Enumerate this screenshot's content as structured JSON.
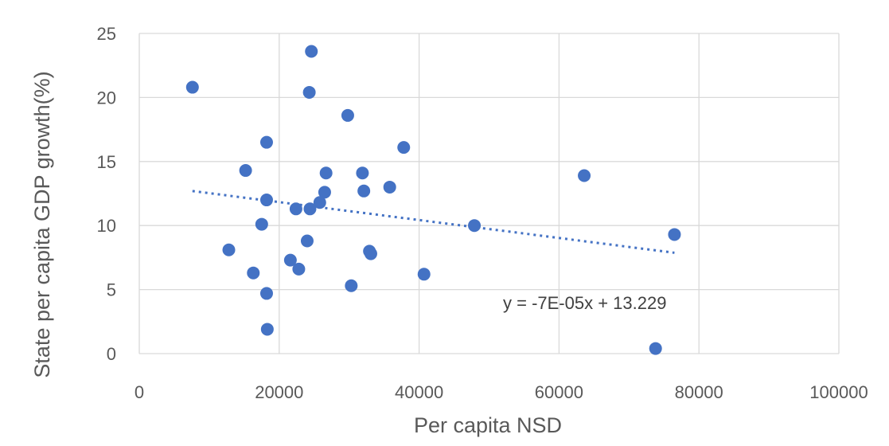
{
  "chart_data": {
    "type": "scatter",
    "xlabel": "Per capita NSD",
    "ylabel": "State per capita GDP growth(%)",
    "xlim": [
      0,
      100000
    ],
    "ylim": [
      0,
      25
    ],
    "xticks": [
      0,
      20000,
      40000,
      60000,
      80000,
      100000
    ],
    "yticks": [
      0,
      5,
      10,
      15,
      20,
      25
    ],
    "xtick_labels": [
      "0",
      "20000",
      "40000",
      "60000",
      "80000",
      "100000"
    ],
    "ytick_labels": [
      "0",
      "5",
      "10",
      "15",
      "20",
      "25"
    ],
    "grid": true,
    "legend": "none",
    "marker_color": "#4472c4",
    "points": [
      {
        "x": 7600,
        "y": 20.8
      },
      {
        "x": 12800,
        "y": 8.1
      },
      {
        "x": 15200,
        "y": 14.3
      },
      {
        "x": 16300,
        "y": 6.3
      },
      {
        "x": 17500,
        "y": 10.1
      },
      {
        "x": 18200,
        "y": 16.5
      },
      {
        "x": 18200,
        "y": 12.0
      },
      {
        "x": 18200,
        "y": 4.7
      },
      {
        "x": 18300,
        "y": 1.9
      },
      {
        "x": 21600,
        "y": 7.3
      },
      {
        "x": 22400,
        "y": 11.3
      },
      {
        "x": 22800,
        "y": 6.6
      },
      {
        "x": 24000,
        "y": 8.8
      },
      {
        "x": 24300,
        "y": 20.4
      },
      {
        "x": 24400,
        "y": 11.3
      },
      {
        "x": 24600,
        "y": 23.6
      },
      {
        "x": 25800,
        "y": 11.8
      },
      {
        "x": 26500,
        "y": 12.6
      },
      {
        "x": 26700,
        "y": 14.1
      },
      {
        "x": 29800,
        "y": 18.6
      },
      {
        "x": 30300,
        "y": 5.3
      },
      {
        "x": 31900,
        "y": 14.1
      },
      {
        "x": 32100,
        "y": 12.7
      },
      {
        "x": 32900,
        "y": 8.0
      },
      {
        "x": 33100,
        "y": 7.8
      },
      {
        "x": 35800,
        "y": 13.0
      },
      {
        "x": 37800,
        "y": 16.1
      },
      {
        "x": 40700,
        "y": 6.2
      },
      {
        "x": 47900,
        "y": 10.0
      },
      {
        "x": 63600,
        "y": 13.9
      },
      {
        "x": 73800,
        "y": 0.4
      },
      {
        "x": 76500,
        "y": 9.3
      }
    ],
    "trendline": {
      "type": "linear",
      "slope": -7e-05,
      "intercept": 13.229,
      "x_range": [
        7600,
        76500
      ],
      "style": "dotted",
      "equation_label": "y = -7E-05x + 13.229"
    }
  }
}
